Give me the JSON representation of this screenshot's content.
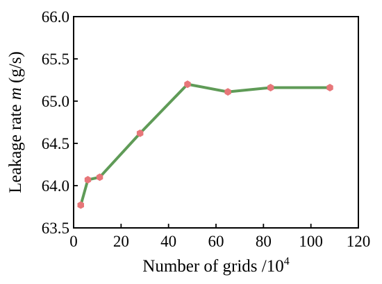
{
  "chart_data": {
    "type": "line",
    "title": "",
    "xlabel": "Number of grids /10",
    "xlabel_sup": "4",
    "ylabel_prefix": "Leakage rate ",
    "ylabel_var": "m",
    "ylabel_suffix": " (g/s)",
    "xlim": [
      0,
      120
    ],
    "ylim": [
      63.5,
      66.0
    ],
    "xticks": [
      0,
      20,
      40,
      60,
      80,
      100,
      120
    ],
    "yticks": [
      63.5,
      64.0,
      64.5,
      65.0,
      65.5,
      66.0
    ],
    "xtick_labels": [
      "0",
      "20",
      "40",
      "60",
      "80",
      "100",
      "120"
    ],
    "ytick_labels": [
      "63.5",
      "64.0",
      "64.5",
      "65.0",
      "65.5",
      "66.0"
    ],
    "grid": false,
    "legend": "none",
    "series": [
      {
        "x": [
          3,
          6,
          11,
          28,
          48,
          65,
          83,
          108
        ],
        "y": [
          63.77,
          64.07,
          64.1,
          64.62,
          65.2,
          65.11,
          65.16,
          65.16
        ],
        "line_color": "#5f9b57",
        "marker_color": "#e77679",
        "marker": "hexagon"
      }
    ]
  }
}
